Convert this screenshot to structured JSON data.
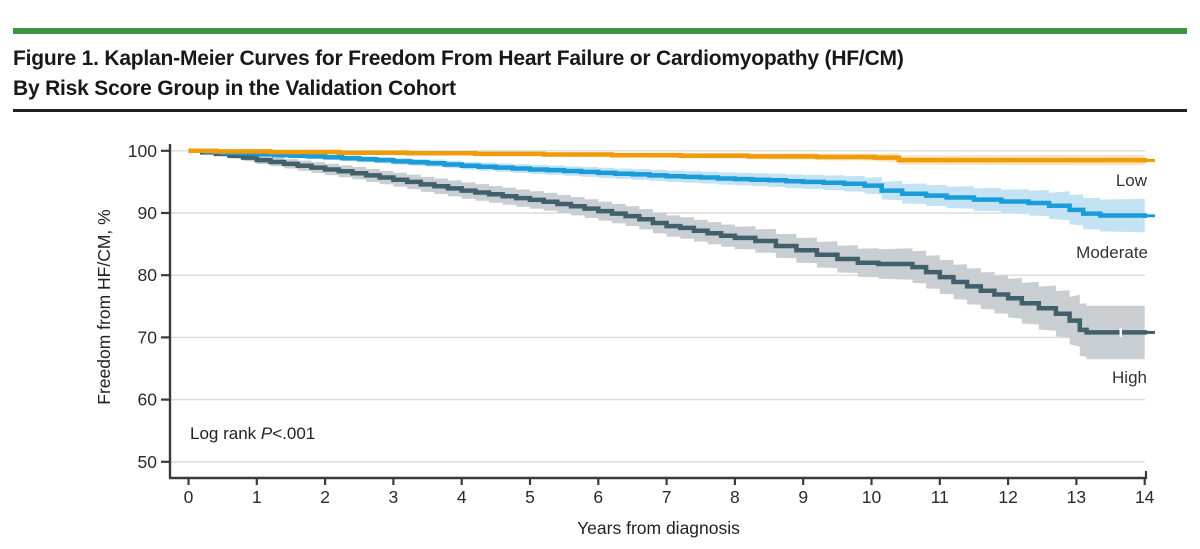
{
  "figure": {
    "accent_color": "#3D9340",
    "title_line1": "Figure 1. Kaplan-Meier Curves for Freedom From Heart Failure or Cardiomyopathy (HF/CM)",
    "title_line2": "By Risk Score Group in the Validation Cohort"
  },
  "chart_data": {
    "type": "line",
    "subtype": "kaplan_meier_step",
    "xlabel": "Years from diagnosis",
    "ylabel": "Freedom from HF/CM, %",
    "xlim": [
      0,
      14
    ],
    "ylim": [
      50,
      100
    ],
    "x_ticks": [
      0,
      1,
      2,
      3,
      4,
      5,
      6,
      7,
      8,
      9,
      10,
      11,
      12,
      13,
      14
    ],
    "y_ticks": [
      50,
      60,
      70,
      80,
      90,
      100
    ],
    "grid": "horizontal",
    "grid_color": "#DCDCDC",
    "axis_color": "#3A3A3A",
    "legend_position": "right-of-curves",
    "annotation": {
      "prefix": "Log rank ",
      "stat": "P",
      "value": "<.001"
    },
    "series": [
      {
        "name": "High",
        "color": "#42606B",
        "ci_color": "#C9CED2",
        "points": [
          [
            0,
            100
          ],
          [
            0.2,
            99.75
          ],
          [
            0.4,
            99.5
          ],
          [
            0.6,
            99.2
          ],
          [
            0.8,
            98.9
          ],
          [
            1,
            98.5
          ],
          [
            1.2,
            98.2
          ],
          [
            1.4,
            97.9
          ],
          [
            1.6,
            97.6
          ],
          [
            1.8,
            97.3
          ],
          [
            2,
            97.0
          ],
          [
            2.2,
            96.7
          ],
          [
            2.4,
            96.4
          ],
          [
            2.6,
            96.05
          ],
          [
            2.8,
            95.7
          ],
          [
            3,
            95.35
          ],
          [
            3.2,
            95.0
          ],
          [
            3.4,
            94.6
          ],
          [
            3.6,
            94.3
          ],
          [
            3.8,
            93.95
          ],
          [
            4,
            93.6
          ],
          [
            4.2,
            93.3
          ],
          [
            4.4,
            93.0
          ],
          [
            4.6,
            92.7
          ],
          [
            4.8,
            92.4
          ],
          [
            5,
            92.1
          ],
          [
            5.2,
            91.8
          ],
          [
            5.4,
            91.45
          ],
          [
            5.6,
            91.1
          ],
          [
            5.8,
            90.7
          ],
          [
            6,
            90.3
          ],
          [
            6.2,
            89.9
          ],
          [
            6.4,
            89.5
          ],
          [
            6.6,
            89.0
          ],
          [
            6.8,
            88.4
          ],
          [
            7,
            87.9
          ],
          [
            7.2,
            87.6
          ],
          [
            7.4,
            87.15
          ],
          [
            7.6,
            86.75
          ],
          [
            7.8,
            86.35
          ],
          [
            8,
            86.0
          ],
          [
            8.3,
            85.5
          ],
          [
            8.6,
            84.7
          ],
          [
            8.9,
            84.0
          ],
          [
            9.2,
            83.3
          ],
          [
            9.5,
            82.6
          ],
          [
            9.8,
            82.0
          ],
          [
            10.1,
            81.8
          ],
          [
            10.6,
            81.3
          ],
          [
            10.8,
            80.5
          ],
          [
            11,
            79.7
          ],
          [
            11.2,
            78.9
          ],
          [
            11.4,
            78.2
          ],
          [
            11.6,
            77.5
          ],
          [
            11.8,
            76.9
          ],
          [
            12,
            76.3
          ],
          [
            12.2,
            75.5
          ],
          [
            12.45,
            74.7
          ],
          [
            12.7,
            73.8
          ],
          [
            12.9,
            72.7
          ],
          [
            13.05,
            71.2
          ],
          [
            13.15,
            70.8
          ],
          [
            14,
            70.8
          ]
        ],
        "ci_half_width": [
          [
            0,
            0.15
          ],
          [
            1,
            0.6
          ],
          [
            2,
            0.9
          ],
          [
            3,
            1.1
          ],
          [
            4,
            1.3
          ],
          [
            5,
            1.4
          ],
          [
            6,
            1.5
          ],
          [
            7,
            1.7
          ],
          [
            8,
            1.8
          ],
          [
            9,
            2.0
          ],
          [
            10,
            2.3
          ],
          [
            11,
            2.7
          ],
          [
            12,
            3.1
          ],
          [
            12.9,
            3.8
          ],
          [
            13.1,
            4.3
          ],
          [
            14,
            4.3
          ]
        ]
      },
      {
        "name": "Moderate",
        "color": "#1A9CD8",
        "ci_color": "#C3E2F4",
        "points": [
          [
            0,
            100
          ],
          [
            0.25,
            99.85
          ],
          [
            0.5,
            99.7
          ],
          [
            0.75,
            99.6
          ],
          [
            1,
            99.45
          ],
          [
            1.25,
            99.3
          ],
          [
            1.5,
            99.2
          ],
          [
            1.75,
            99.1
          ],
          [
            2,
            98.95
          ],
          [
            2.25,
            98.8
          ],
          [
            2.5,
            98.65
          ],
          [
            2.75,
            98.5
          ],
          [
            3,
            98.3
          ],
          [
            3.25,
            98.15
          ],
          [
            3.5,
            98.0
          ],
          [
            3.75,
            97.8
          ],
          [
            4,
            97.6
          ],
          [
            4.25,
            97.45
          ],
          [
            4.5,
            97.3
          ],
          [
            4.75,
            97.15
          ],
          [
            5,
            97.0
          ],
          [
            5.25,
            96.9
          ],
          [
            5.5,
            96.75
          ],
          [
            5.75,
            96.6
          ],
          [
            6,
            96.45
          ],
          [
            6.25,
            96.3
          ],
          [
            6.5,
            96.2
          ],
          [
            6.75,
            96.05
          ],
          [
            7,
            95.9
          ],
          [
            7.25,
            95.8
          ],
          [
            7.5,
            95.7
          ],
          [
            7.75,
            95.55
          ],
          [
            8,
            95.45
          ],
          [
            8.25,
            95.35
          ],
          [
            8.5,
            95.25
          ],
          [
            8.75,
            95.1
          ],
          [
            9,
            95.0
          ],
          [
            9.3,
            94.85
          ],
          [
            9.6,
            94.7
          ],
          [
            9.9,
            94.4
          ],
          [
            10.15,
            93.6
          ],
          [
            10.45,
            93.1
          ],
          [
            10.8,
            92.8
          ],
          [
            11.1,
            92.5
          ],
          [
            11.5,
            92.15
          ],
          [
            11.9,
            91.85
          ],
          [
            12.3,
            91.6
          ],
          [
            12.6,
            91.15
          ],
          [
            12.9,
            90.5
          ],
          [
            13.1,
            89.9
          ],
          [
            13.35,
            89.6
          ],
          [
            14,
            89.55
          ]
        ],
        "ci_half_width": [
          [
            0,
            0.1
          ],
          [
            1,
            0.3
          ],
          [
            2,
            0.42
          ],
          [
            3,
            0.52
          ],
          [
            4,
            0.62
          ],
          [
            5,
            0.72
          ],
          [
            6,
            0.8
          ],
          [
            7,
            0.9
          ],
          [
            8,
            1.0
          ],
          [
            9,
            1.1
          ],
          [
            10,
            1.3
          ],
          [
            10.5,
            1.6
          ],
          [
            11,
            1.7
          ],
          [
            12,
            1.9
          ],
          [
            12.6,
            2.1
          ],
          [
            13.1,
            2.5
          ],
          [
            14,
            2.7
          ]
        ]
      },
      {
        "name": "Low",
        "color": "#F09C08",
        "ci_color": "#F9E4C2",
        "points": [
          [
            0,
            100
          ],
          [
            0.4,
            99.9
          ],
          [
            1.2,
            99.8
          ],
          [
            2.2,
            99.7
          ],
          [
            3.2,
            99.6
          ],
          [
            4.2,
            99.5
          ],
          [
            5.2,
            99.4
          ],
          [
            6.2,
            99.3
          ],
          [
            7.2,
            99.2
          ],
          [
            8.2,
            99.1
          ],
          [
            9.2,
            99.0
          ],
          [
            10.05,
            98.9
          ],
          [
            10.4,
            98.5
          ],
          [
            14,
            98.45
          ]
        ],
        "ci_half_width": [
          [
            0,
            0.12
          ],
          [
            2,
            0.25
          ],
          [
            5,
            0.35
          ],
          [
            8,
            0.45
          ],
          [
            10,
            0.55
          ],
          [
            10.4,
            0.75
          ],
          [
            14,
            0.85
          ]
        ]
      }
    ],
    "censor_marks": [
      {
        "series": "High",
        "year": 13.65
      }
    ]
  }
}
